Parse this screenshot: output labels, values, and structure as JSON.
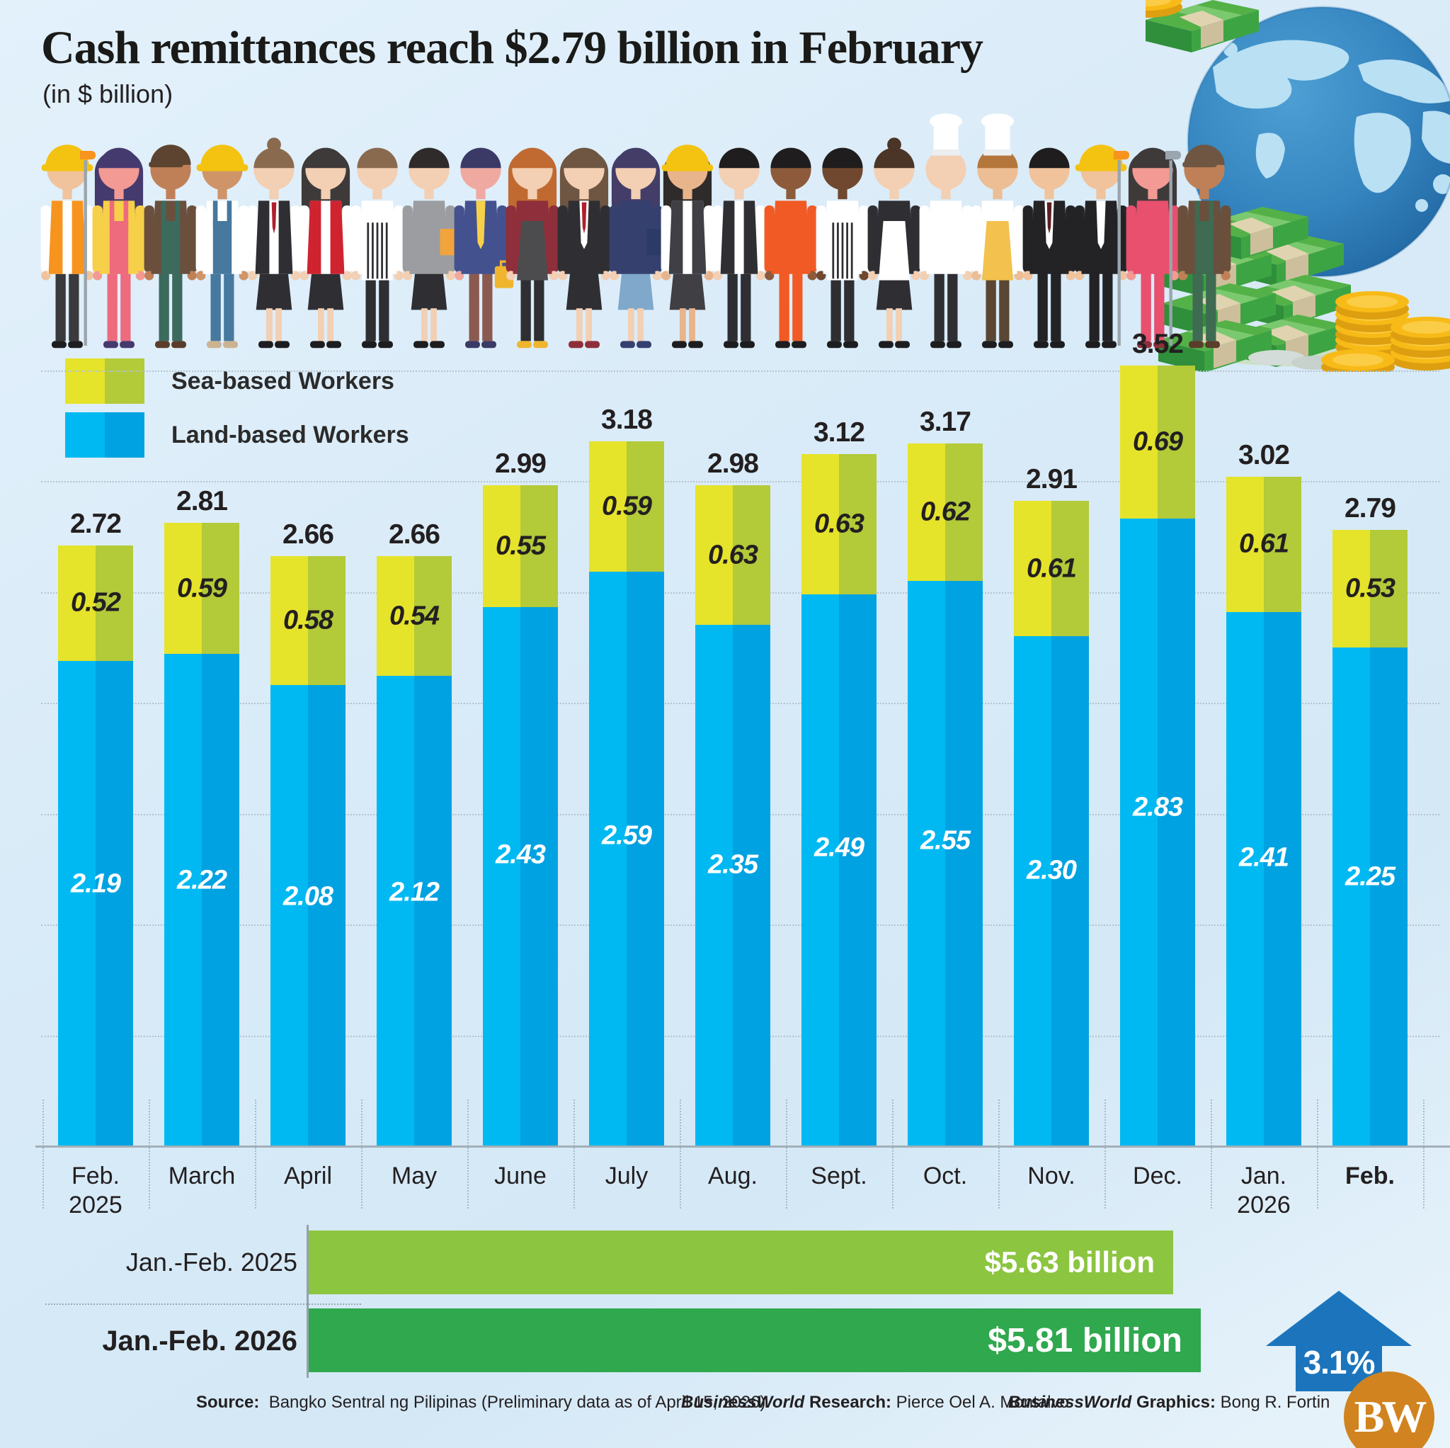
{
  "title": "Cash remittances reach $2.79 billion in February",
  "subtitle": "(in $ billion)",
  "legend": [
    {
      "label": "Sea-based Workers",
      "colors": [
        "#e6e32b",
        "#b3ca39"
      ]
    },
    {
      "label": "Land-based Workers",
      "colors": [
        "#00b9f2",
        "#00a2e2"
      ]
    }
  ],
  "chart_data": {
    "type": "bar",
    "stacked": true,
    "title": "Cash remittances reach $2.79 billion in February",
    "unit_note": "(in $ billion)",
    "categories": [
      {
        "line1": "Feb.",
        "line2": "2025",
        "bold": false
      },
      {
        "line1": "March",
        "line2": "",
        "bold": false
      },
      {
        "line1": "April",
        "line2": "",
        "bold": false
      },
      {
        "line1": "May",
        "line2": "",
        "bold": false
      },
      {
        "line1": "June",
        "line2": "",
        "bold": false
      },
      {
        "line1": "July",
        "line2": "",
        "bold": false
      },
      {
        "line1": "Aug.",
        "line2": "",
        "bold": false
      },
      {
        "line1": "Sept.",
        "line2": "",
        "bold": false
      },
      {
        "line1": "Oct.",
        "line2": "",
        "bold": false
      },
      {
        "line1": "Nov.",
        "line2": "",
        "bold": false
      },
      {
        "line1": "Dec.",
        "line2": "",
        "bold": false
      },
      {
        "line1": "Jan.",
        "line2": "2026",
        "bold": false
      },
      {
        "line1": "Feb.",
        "line2": "",
        "bold": true
      }
    ],
    "series": [
      {
        "name": "Land-based Workers",
        "colors": [
          "#00b9f2",
          "#00a2e2"
        ],
        "label_color": "#ffffff",
        "values": [
          "2.19",
          "2.22",
          "2.08",
          "2.12",
          "2.43",
          "2.59",
          "2.35",
          "2.49",
          "2.55",
          "2.30",
          "2.83",
          "2.41",
          "2.25"
        ]
      },
      {
        "name": "Sea-based Workers",
        "colors": [
          "#e6e32b",
          "#b3ca39"
        ],
        "label_color": "#231f20",
        "values": [
          "0.52",
          "0.59",
          "0.58",
          "0.54",
          "0.55",
          "0.59",
          "0.63",
          "0.63",
          "0.62",
          "0.61",
          "0.69",
          "0.61",
          "0.53"
        ]
      }
    ],
    "totals": [
      "2.72",
      "2.81",
      "2.66",
      "2.66",
      "2.99",
      "3.18",
      "2.98",
      "3.12",
      "3.17",
      "2.91",
      "3.52",
      "3.02",
      "2.79"
    ],
    "ylim": [
      0,
      3.6
    ],
    "gridlines": "faint dotted horizontal every 0.5, dotted vertical category separators near axis"
  },
  "comparison": {
    "rows": [
      {
        "label": "Jan.-Feb. 2025",
        "bold": false,
        "value": 5.63,
        "value_label": "$5.63 billion",
        "color": "#8cc540",
        "font": 42
      },
      {
        "label": "Jan.-Feb. 2026",
        "bold": true,
        "value": 5.81,
        "value_label": "$5.81 billion",
        "color": "#2fa84e",
        "font": 48
      }
    ],
    "change_label": "3.1%",
    "arrow_color": "#1c75bc"
  },
  "footer": {
    "source_label": "Source:",
    "source_text": "Bangko Sentral ng Pilipinas (Preliminary data as of April 15, 2026)",
    "research_brand": "BusinessWorld",
    "research_label": "Research:",
    "research_text": "Pierce Oel A. Montalvo",
    "graphics_brand": "BusinessWorld",
    "graphics_label": "Graphics:",
    "graphics_text": "Bong R. Fortin"
  },
  "logo": {
    "text": "BW",
    "color": "#d1831f"
  },
  "illustration": {
    "description": "row of overseas Filipino workers of many professions, globe, stacks of cash and gold coins",
    "workers": [
      {
        "name": "construction-worker",
        "hat": "helmet",
        "hatC": "#f4c211",
        "skin": "#f0c39c",
        "top": "#ffffff",
        "vest": "#f7941e",
        "bottom": "#3a3a3c",
        "shoes": "#1d1d1f"
      },
      {
        "name": "painter-woman",
        "hair": "long",
        "hairC": "#453a6e",
        "skin": "#f29a93",
        "top": "#f7d04a",
        "bib": "#ee6a7d",
        "bottom": "#ee6a7d",
        "shoes": "#453a6e",
        "acc": "pole",
        "accC": "#f7941e"
      },
      {
        "name": "farmer",
        "hat": "cap",
        "hatC": "#5d4430",
        "skin": "#c08057",
        "top": "#6a4f3d",
        "bib": "#3c6b5e",
        "bottom": "#3c6b5e",
        "shoes": "#5a3d2a"
      },
      {
        "name": "builder",
        "hat": "helmet",
        "hatC": "#f4c211",
        "skin": "#cf9468",
        "top": "#ffffff",
        "bib": "#47789e",
        "bottom": "#47789e",
        "shoes": "#cbb392"
      },
      {
        "name": "hostess",
        "hair": "bun",
        "hairC": "#8a6a4f",
        "skin": "#f3cfb3",
        "top": "#ffffff",
        "vest": "#2f2f33",
        "tie": "#b01f2e",
        "bottom": "#2f2f33",
        "bottomType": "skirt",
        "shoes": "#1d1d1f"
      },
      {
        "name": "attendant",
        "hair": "long",
        "hairC": "#3f3a3a",
        "skin": "#f3cfb3",
        "top": "#ffffff",
        "vest": "#cf2330",
        "bottom": "#2f2f33",
        "bottomType": "skirt",
        "shoes": "#1d1d1f"
      },
      {
        "name": "waiter-striped-apron",
        "hair": "short",
        "hairC": "#8a6a4f",
        "skin": "#f3cfb3",
        "top": "#ffffff",
        "apron": "stripes",
        "bottom": "#2f2f33",
        "shoes": "#1d1d1f"
      },
      {
        "name": "businesswoman-gray",
        "hair": "short",
        "hairC": "#2f2b2b",
        "skin": "#f3cfb3",
        "top": "#9b9da0",
        "bottom": "#2f2f33",
        "bottomType": "skirt",
        "shoes": "#1d1d1f",
        "acc": "folder",
        "accC": "#f1a33c"
      },
      {
        "name": "casual-worker",
        "hair": "short",
        "hairC": "#3b3a66",
        "skin": "#f0a9a0",
        "top": "#44518f",
        "inner": "#f7d04a",
        "bottom": "#8a5a50",
        "shoes": "#3b3a66",
        "acc": "case",
        "accC": "#f0b52f"
      },
      {
        "name": "barista",
        "hair": "long",
        "hairC": "#c06a31",
        "skin": "#f3cfb3",
        "top": "#8e2f3b",
        "apron": "#4c4c4e",
        "bottom": "#2f2f33",
        "shoes": "#f0b52f"
      },
      {
        "name": "agent-headset",
        "hair": "long",
        "hairC": "#6e5643",
        "skin": "#f3cfb3",
        "top": "#2f2f33",
        "inner": "#ffffff",
        "tie": "#b01f2e",
        "bottom": "#2f2f33",
        "bottomType": "skirt",
        "shoes": "#8e2f3b"
      },
      {
        "name": "teacher",
        "hair": "long",
        "hairC": "#433d68",
        "skin": "#f3cfb3",
        "top": "#35406e",
        "bottom": "#7fa8cb",
        "bottomType": "skirt",
        "shoes": "#35406e",
        "acc": "folder",
        "accC": "#2c3a66"
      },
      {
        "name": "engineer-woman",
        "hat": "helmet",
        "hatC": "#f4c211",
        "hair": "long",
        "hairC": "#2f2b2b",
        "skin": "#e8b48c",
        "top": "#ffffff",
        "vest": "#3f3f44",
        "bottom": "#3f3f44",
        "bottomType": "skirt",
        "shoes": "#1d1d1f"
      },
      {
        "name": "waiter",
        "hair": "short",
        "hairC": "#1f1d1d",
        "skin": "#f3cfb3",
        "top": "#ffffff",
        "vest": "#2f2f33",
        "bottom": "#2f2f33",
        "shoes": "#1d1d1f"
      },
      {
        "name": "mechanic-coveralls",
        "hair": "short",
        "hairC": "#1f1d1d",
        "skin": "#8d5a3b",
        "top": "#f15a24",
        "bottom": "#f15a24",
        "shoes": "#1d1d1f"
      },
      {
        "name": "cook-striped-apron",
        "hair": "short",
        "hairC": "#1f1d1d",
        "skin": "#70482f",
        "top": "#ffffff",
        "apron": "stripes",
        "bottom": "#2f2f33",
        "shoes": "#1d1d1f"
      },
      {
        "name": "housekeeper",
        "hair": "bun",
        "hairC": "#4a3526",
        "skin": "#f3cfb3",
        "top": "#2f2f33",
        "apron": "#ffffff",
        "bottom": "#2f2f33",
        "bottomType": "skirt",
        "shoes": "#1d1d1f"
      },
      {
        "name": "chef",
        "hat": "toque",
        "skin": "#f3cfb3",
        "top": "#ffffff",
        "bottom": "#2f2f33",
        "shoes": "#1d1d1f"
      },
      {
        "name": "baker",
        "hat": "toque",
        "hair": "short",
        "hairC": "#b5763c",
        "skin": "#edbd94",
        "top": "#ffffff",
        "apron": "#f2c14e",
        "bottom": "#5a4632",
        "shoes": "#1d1d1f"
      },
      {
        "name": "businessman",
        "hair": "short",
        "hairC": "#1f1d1d",
        "skin": "#f0c39c",
        "top": "#232326",
        "inner": "#ffffff",
        "tie": "#5a1f24",
        "bottom": "#232326",
        "shoes": "#1d1d1f"
      },
      {
        "name": "site-engineer",
        "hat": "helmet",
        "hatC": "#f4c211",
        "hair": "short",
        "hairC": "#1f1d1d",
        "skin": "#f0c39c",
        "top": "#232326",
        "inner": "#ffffff",
        "bottom": "#232326",
        "shoes": "#1d1d1f"
      },
      {
        "name": "painter-pink",
        "hair": "long",
        "hairC": "#3f3a3a",
        "skin": "#f29a93",
        "top": "#e8506e",
        "bottom": "#e8506e",
        "shoes": "#8e2f3b",
        "acc": "pole",
        "accC": "#f7941e"
      },
      {
        "name": "janitor",
        "hat": "cap",
        "hatC": "#6e5643",
        "skin": "#c08057",
        "top": "#6a4f3d",
        "bib": "#3e6b52",
        "bottom": "#3e6b52",
        "shoes": "#5a3d2a",
        "acc": "pole",
        "accC": "#9aa5ad"
      }
    ]
  }
}
